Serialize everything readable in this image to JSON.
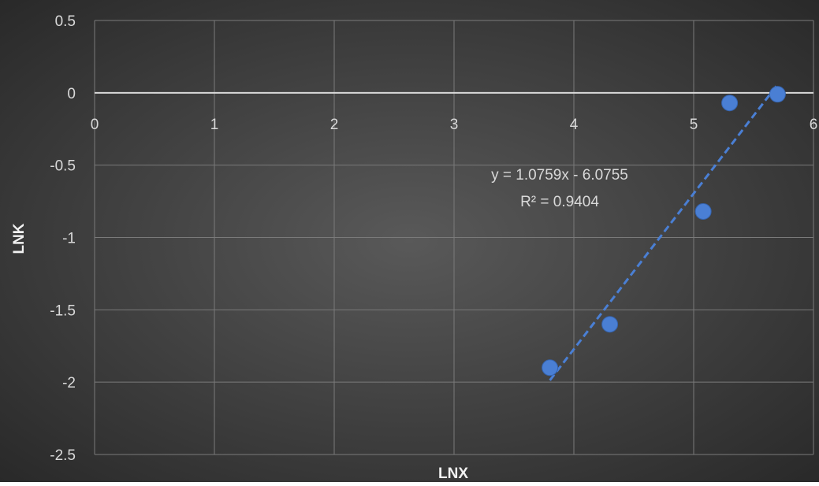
{
  "chart_data": {
    "type": "scatter",
    "xlabel": "LNX",
    "ylabel": "LNK",
    "xlim": [
      0,
      6
    ],
    "ylim": [
      -2.5,
      0.5
    ],
    "x_ticks": [
      0,
      1,
      2,
      3,
      4,
      5,
      6
    ],
    "y_ticks": [
      0.5,
      0,
      -0.5,
      -1,
      -1.5,
      -2,
      -2.5
    ],
    "x_tick_labels": [
      "0",
      "1",
      "2",
      "3",
      "4",
      "5",
      "6"
    ],
    "y_tick_labels": [
      "0.5",
      "0",
      "-0.5",
      "-1",
      "-1.5",
      "-2",
      "-2.5"
    ],
    "grid": true,
    "series": [
      {
        "x": [
          3.8,
          4.3,
          5.08,
          5.3,
          5.7
        ],
        "y": [
          -1.9,
          -1.6,
          -0.82,
          -0.07,
          -0.01
        ],
        "color": "#4a7fd4"
      }
    ],
    "trendline": {
      "type": "linear",
      "x_range": [
        3.8,
        5.7
      ],
      "slope": 1.0759,
      "intercept": -6.0755,
      "color": "#4a7fd4",
      "equation_label": "y = 1.0759x - 6.0755",
      "r2_label": "R² = 0.9404"
    },
    "colors": {
      "background_center": "#595959",
      "background_edge": "#262626",
      "grid": "#7a7a7a",
      "zero_line": "#d9d9d9",
      "text": "#d9d9d9",
      "axis_title": "#f2f2f2"
    }
  }
}
